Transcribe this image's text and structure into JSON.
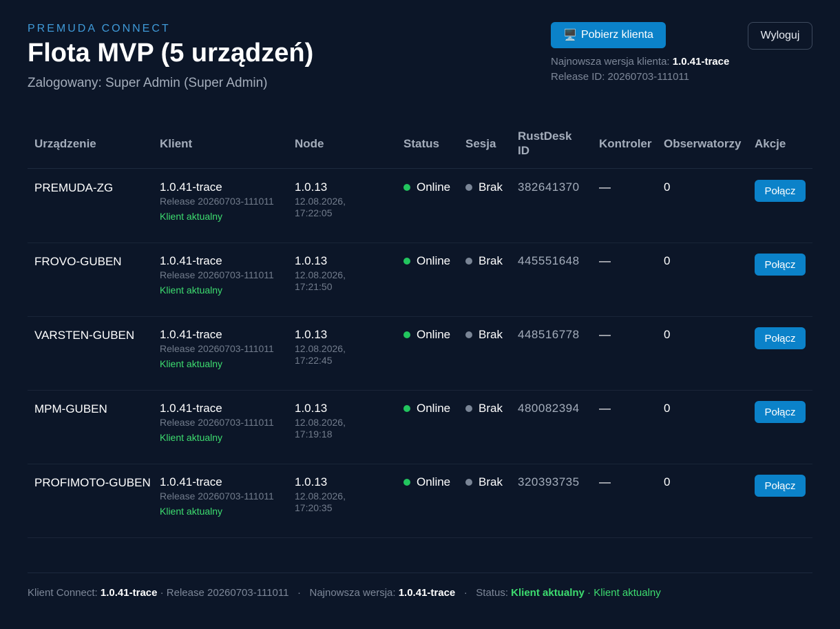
{
  "header": {
    "brand": "PREMUDA CONNECT",
    "title": "Flota MVP (5 urządzeń)",
    "subtitle": "Zalogowany: Super Admin (Super Admin)",
    "download_icon": "🖥️",
    "download_label": "Pobierz klienta",
    "logout_label": "Wyloguj",
    "latest_version_label": "Najnowsza wersja klienta:",
    "latest_version": "1.0.41-trace",
    "release_id": "Release ID: 20260703-111011"
  },
  "table": {
    "columns": [
      "Urządzenie",
      "Klient",
      "Node",
      "Status",
      "Sesja",
      "RustDesk ID",
      "Kontroler",
      "Obserwatorzy",
      "Akcje"
    ],
    "rows": [
      {
        "device": "PREMUDA-ZG",
        "client": "1.0.41-trace",
        "release": "Release 20260703-111011",
        "client_status": "Klient aktualny",
        "node": "1.0.13",
        "node_time": "12.08.2026, 17:22:05",
        "status": "Online",
        "session": "Brak",
        "rustdesk_id": "382641370",
        "controller": "—",
        "observers": "0",
        "action": "Połącz"
      },
      {
        "device": "FROVO-GUBEN",
        "client": "1.0.41-trace",
        "release": "Release 20260703-111011",
        "client_status": "Klient aktualny",
        "node": "1.0.13",
        "node_time": "12.08.2026, 17:21:50",
        "status": "Online",
        "session": "Brak",
        "rustdesk_id": "445551648",
        "controller": "—",
        "observers": "0",
        "action": "Połącz"
      },
      {
        "device": "VARSTEN-GUBEN",
        "client": "1.0.41-trace",
        "release": "Release 20260703-111011",
        "client_status": "Klient aktualny",
        "node": "1.0.13",
        "node_time": "12.08.2026, 17:22:45",
        "status": "Online",
        "session": "Brak",
        "rustdesk_id": "448516778",
        "controller": "—",
        "observers": "0",
        "action": "Połącz"
      },
      {
        "device": "MPM-GUBEN",
        "client": "1.0.41-trace",
        "release": "Release 20260703-111011",
        "client_status": "Klient aktualny",
        "node": "1.0.13",
        "node_time": "12.08.2026, 17:19:18",
        "status": "Online",
        "session": "Brak",
        "rustdesk_id": "480082394",
        "controller": "—",
        "observers": "0",
        "action": "Połącz"
      },
      {
        "device": "PROFIMOTO-GUBEN",
        "client": "1.0.41-trace",
        "release": "Release 20260703-111011",
        "client_status": "Klient aktualny",
        "node": "1.0.13",
        "node_time": "12.08.2026, 17:20:35",
        "status": "Online",
        "session": "Brak",
        "rustdesk_id": "320393735",
        "controller": "—",
        "observers": "0",
        "action": "Połącz"
      }
    ]
  },
  "footer": {
    "client_label": "Klient Connect:",
    "client_version": "1.0.41-trace",
    "release": "· Release 20260703-111011",
    "sep": "·",
    "latest_label": "Najnowsza wersja:",
    "latest_version": "1.0.41-trace",
    "status_label": "Status:",
    "status_value": "Klient aktualny",
    "status_extra": "· Klient aktualny"
  },
  "colors": {
    "background": "#0c1628",
    "accent": "#0b82c9",
    "online": "#22c55e",
    "ok_text": "#3ddc6f"
  }
}
